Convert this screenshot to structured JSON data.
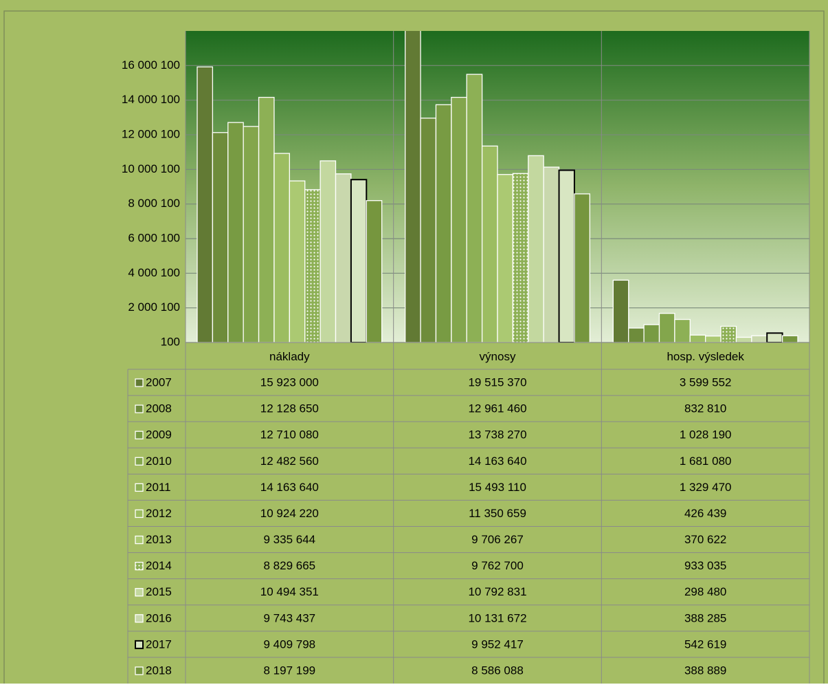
{
  "chart_data": {
    "type": "bar",
    "categories": [
      "náklady",
      "výnosy",
      "hosp. výsledek"
    ],
    "ylim": [
      100,
      18000100
    ],
    "yticks": [
      100,
      {
        "value": 2000100,
        "label": "2 000 100"
      },
      {
        "value": 4000100,
        "label": "4 000 100"
      },
      {
        "value": 6000100,
        "label": "6 000 100"
      },
      {
        "value": 8000100,
        "label": "8 000 100"
      },
      {
        "value": 10000100,
        "label": "10 000 100"
      },
      {
        "value": 12000100,
        "label": "12 000 100"
      },
      {
        "value": 14000100,
        "label": "14 000 100"
      },
      {
        "value": 16000100,
        "label": "16 000 100"
      }
    ],
    "grid": true,
    "series": [
      {
        "name": "2007",
        "color": "#627a34",
        "values": [
          15923000,
          19515370,
          3599552
        ],
        "value_labels": [
          "15 923 000",
          "19 515 370",
          "3 599 552"
        ]
      },
      {
        "name": "2008",
        "color": "#6e8c3b",
        "values": [
          12128650,
          12961460,
          832810
        ],
        "value_labels": [
          "12 128 650",
          "12 961 460",
          "832 810"
        ]
      },
      {
        "name": "2009",
        "color": "#789b43",
        "values": [
          12710080,
          13738270,
          1028190
        ],
        "value_labels": [
          "12 710 080",
          "13 738 270",
          "1 028 190"
        ]
      },
      {
        "name": "2010",
        "color": "#83a64c",
        "values": [
          12482560,
          14163640,
          1681080
        ],
        "value_labels": [
          "12 482 560",
          "14 163 640",
          "1 681 080"
        ]
      },
      {
        "name": "2011",
        "color": "#8db055",
        "values": [
          14163640,
          15493110,
          1329470
        ],
        "value_labels": [
          "14 163 640",
          "15 493 110",
          "1 329 470"
        ]
      },
      {
        "name": "2012",
        "color": "#9cbd61",
        "values": [
          10924220,
          11350659,
          426439
        ],
        "value_labels": [
          "10 924 220",
          "11 350 659",
          "426 439"
        ]
      },
      {
        "name": "2013",
        "color": "#abc972",
        "values": [
          9335644,
          9706267,
          370622
        ],
        "value_labels": [
          "9 335 644",
          "9 706 267",
          "370 622"
        ]
      },
      {
        "name": "2014",
        "color": "#8db055",
        "pattern": "dots",
        "values": [
          8829665,
          9762700,
          933035
        ],
        "value_labels": [
          "8 829 665",
          "9 762 700",
          "933 035"
        ]
      },
      {
        "name": "2015",
        "color": "#c3d89f",
        "values": [
          10494351,
          10792831,
          298480
        ],
        "value_labels": [
          "10 494 351",
          "10 792 831",
          "298 480"
        ]
      },
      {
        "name": "2016",
        "color": "#c9d8ad",
        "values": [
          9743437,
          10131672,
          388285
        ],
        "value_labels": [
          "9 743 437",
          "10 131 672",
          "388 285"
        ]
      },
      {
        "name": "2017",
        "color": "#d8e6c2",
        "edgecolor": "#000000",
        "values": [
          9409798,
          9952417,
          542619
        ],
        "value_labels": [
          "9 409 798",
          "9 952 417",
          "542 619"
        ]
      },
      {
        "name": "2018",
        "color": "#76963e",
        "values": [
          8197199,
          8586088,
          388889
        ],
        "value_labels": [
          "8 197 199",
          "8 586 088",
          "388 889"
        ]
      }
    ]
  }
}
